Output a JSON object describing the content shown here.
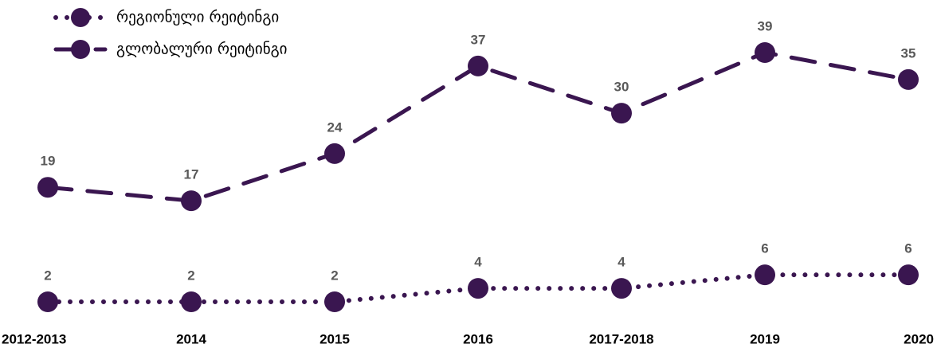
{
  "chart_data": {
    "type": "line",
    "categories": [
      "2012-2013",
      "2014",
      "2015",
      "2016",
      "2017-2018",
      "2019",
      "2020"
    ],
    "series": [
      {
        "name": "რეგიონული რეიტინგი",
        "color": "#3a1650",
        "line_style": "dotted",
        "values": [
          2,
          2,
          2,
          4,
          4,
          6,
          6
        ]
      },
      {
        "name": "გლობალური რეიტინგი",
        "color": "#3a1650",
        "line_style": "dashed",
        "values": [
          19,
          17,
          24,
          37,
          30,
          39,
          35
        ]
      }
    ]
  }
}
